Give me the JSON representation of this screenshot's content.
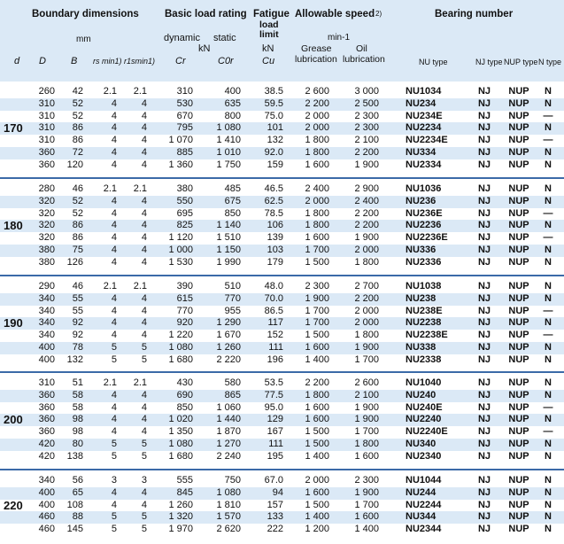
{
  "header": {
    "boundary_dimensions": "Boundary dimensions",
    "mm": "mm",
    "basic_load_rating": "Basic load rating",
    "dynamic": "dynamic",
    "static": "static",
    "kN1": "kN",
    "fatigue_load_limit": [
      "Fatigue",
      "load",
      "limit"
    ],
    "kN2": "kN",
    "allowable_speed": "Allowable speed",
    "allowable_speed_note": "2)",
    "min1": "min-1",
    "grease": [
      "Grease",
      "lubrication"
    ],
    "oil": [
      "Oil",
      "lubrication"
    ],
    "bearing_number": "Bearing number",
    "col_d": "d",
    "col_D": "D",
    "col_B": "B",
    "col_rs": "rs min1)",
    "col_r1s": "r1smin1)",
    "col_Cr": "Cr",
    "col_C0r": "C0r",
    "col_Cu": "Cu",
    "col_nu": "NU type",
    "col_nj": "NJ type",
    "col_nup": "NUP type",
    "col_n": "N type"
  },
  "groups": [
    {
      "d": "170",
      "rows": [
        [
          "260",
          "42",
          "2.1",
          "2.1",
          "310",
          "400",
          "38.5",
          "2 600",
          "3 000",
          "NU1034",
          "NJ",
          "NUP",
          "N"
        ],
        [
          "310",
          "52",
          "4",
          "4",
          "530",
          "635",
          "59.5",
          "2 200",
          "2 500",
          "NU234",
          "NJ",
          "NUP",
          "N"
        ],
        [
          "310",
          "52",
          "4",
          "4",
          "670",
          "800",
          "75.0",
          "2 000",
          "2 300",
          "NU234E",
          "NJ",
          "NUP",
          "—"
        ],
        [
          "310",
          "86",
          "4",
          "4",
          "795",
          "1 080",
          "101",
          "2 000",
          "2 300",
          "NU2234",
          "NJ",
          "NUP",
          "N"
        ],
        [
          "310",
          "86",
          "4",
          "4",
          "1 070",
          "1 410",
          "132",
          "1 800",
          "2 100",
          "NU2234E",
          "NJ",
          "NUP",
          "—"
        ],
        [
          "360",
          "72",
          "4",
          "4",
          "885",
          "1 010",
          "92.0",
          "1 800",
          "2 200",
          "NU334",
          "NJ",
          "NUP",
          "N"
        ],
        [
          "360",
          "120",
          "4",
          "4",
          "1 360",
          "1 750",
          "159",
          "1 600",
          "1 900",
          "NU2334",
          "NJ",
          "NUP",
          "N"
        ]
      ]
    },
    {
      "d": "180",
      "rows": [
        [
          "280",
          "46",
          "2.1",
          "2.1",
          "380",
          "485",
          "46.5",
          "2 400",
          "2 900",
          "NU1036",
          "NJ",
          "NUP",
          "N"
        ],
        [
          "320",
          "52",
          "4",
          "4",
          "550",
          "675",
          "62.5",
          "2 000",
          "2 400",
          "NU236",
          "NJ",
          "NUP",
          "N"
        ],
        [
          "320",
          "52",
          "4",
          "4",
          "695",
          "850",
          "78.5",
          "1 800",
          "2 200",
          "NU236E",
          "NJ",
          "NUP",
          "—"
        ],
        [
          "320",
          "86",
          "4",
          "4",
          "825",
          "1 140",
          "106",
          "1 800",
          "2 200",
          "NU2236",
          "NJ",
          "NUP",
          "N"
        ],
        [
          "320",
          "86",
          "4",
          "4",
          "1 120",
          "1 510",
          "139",
          "1 600",
          "1 900",
          "NU2236E",
          "NJ",
          "NUP",
          "—"
        ],
        [
          "380",
          "75",
          "4",
          "4",
          "1 000",
          "1 150",
          "103",
          "1 700",
          "2 000",
          "NU336",
          "NJ",
          "NUP",
          "N"
        ],
        [
          "380",
          "126",
          "4",
          "4",
          "1 530",
          "1 990",
          "179",
          "1 500",
          "1 800",
          "NU2336",
          "NJ",
          "NUP",
          "N"
        ]
      ]
    },
    {
      "d": "190",
      "rows": [
        [
          "290",
          "46",
          "2.1",
          "2.1",
          "390",
          "510",
          "48.0",
          "2 300",
          "2 700",
          "NU1038",
          "NJ",
          "NUP",
          "N"
        ],
        [
          "340",
          "55",
          "4",
          "4",
          "615",
          "770",
          "70.0",
          "1 900",
          "2 200",
          "NU238",
          "NJ",
          "NUP",
          "N"
        ],
        [
          "340",
          "55",
          "4",
          "4",
          "770",
          "955",
          "86.5",
          "1 700",
          "2 000",
          "NU238E",
          "NJ",
          "NUP",
          "—"
        ],
        [
          "340",
          "92",
          "4",
          "4",
          "920",
          "1 290",
          "117",
          "1 700",
          "2 000",
          "NU2238",
          "NJ",
          "NUP",
          "N"
        ],
        [
          "340",
          "92",
          "4",
          "4",
          "1 220",
          "1 670",
          "152",
          "1 500",
          "1 800",
          "NU2238E",
          "NJ",
          "NUP",
          "—"
        ],
        [
          "400",
          "78",
          "5",
          "5",
          "1 080",
          "1 260",
          "111",
          "1 600",
          "1 900",
          "NU338",
          "NJ",
          "NUP",
          "N"
        ],
        [
          "400",
          "132",
          "5",
          "5",
          "1 680",
          "2 220",
          "196",
          "1 400",
          "1 700",
          "NU2338",
          "NJ",
          "NUP",
          "N"
        ]
      ]
    },
    {
      "d": "200",
      "rows": [
        [
          "310",
          "51",
          "2.1",
          "2.1",
          "430",
          "580",
          "53.5",
          "2 200",
          "2 600",
          "NU1040",
          "NJ",
          "NUP",
          "N"
        ],
        [
          "360",
          "58",
          "4",
          "4",
          "690",
          "865",
          "77.5",
          "1 800",
          "2 100",
          "NU240",
          "NJ",
          "NUP",
          "N"
        ],
        [
          "360",
          "58",
          "4",
          "4",
          "850",
          "1 060",
          "95.0",
          "1 600",
          "1 900",
          "NU240E",
          "NJ",
          "NUP",
          "—"
        ],
        [
          "360",
          "98",
          "4",
          "4",
          "1 020",
          "1 440",
          "129",
          "1 600",
          "1 900",
          "NU2240",
          "NJ",
          "NUP",
          "N"
        ],
        [
          "360",
          "98",
          "4",
          "4",
          "1 350",
          "1 870",
          "167",
          "1 500",
          "1 700",
          "NU2240E",
          "NJ",
          "NUP",
          "—"
        ],
        [
          "420",
          "80",
          "5",
          "5",
          "1 080",
          "1 270",
          "111",
          "1 500",
          "1 800",
          "NU340",
          "NJ",
          "NUP",
          "N"
        ],
        [
          "420",
          "138",
          "5",
          "5",
          "1 680",
          "2 240",
          "195",
          "1 400",
          "1 600",
          "NU2340",
          "NJ",
          "NUP",
          "N"
        ]
      ]
    },
    {
      "d": "220",
      "rows": [
        [
          "340",
          "56",
          "3",
          "3",
          "555",
          "750",
          "67.0",
          "2 000",
          "2 300",
          "NU1044",
          "NJ",
          "NUP",
          "N"
        ],
        [
          "400",
          "65",
          "4",
          "4",
          "845",
          "1 080",
          "94",
          "1 600",
          "1 900",
          "NU244",
          "NJ",
          "NUP",
          "N"
        ],
        [
          "400",
          "108",
          "4",
          "4",
          "1 260",
          "1 810",
          "157",
          "1 500",
          "1 700",
          "NU2244",
          "NJ",
          "NUP",
          "N"
        ],
        [
          "460",
          "88",
          "5",
          "5",
          "1 320",
          "1 570",
          "133",
          "1 400",
          "1 600",
          "NU344",
          "NJ",
          "NUP",
          "N"
        ],
        [
          "460",
          "145",
          "5",
          "5",
          "1 970",
          "2 620",
          "222",
          "1 200",
          "1 400",
          "NU2344",
          "NJ",
          "NUP",
          "N"
        ]
      ]
    }
  ]
}
